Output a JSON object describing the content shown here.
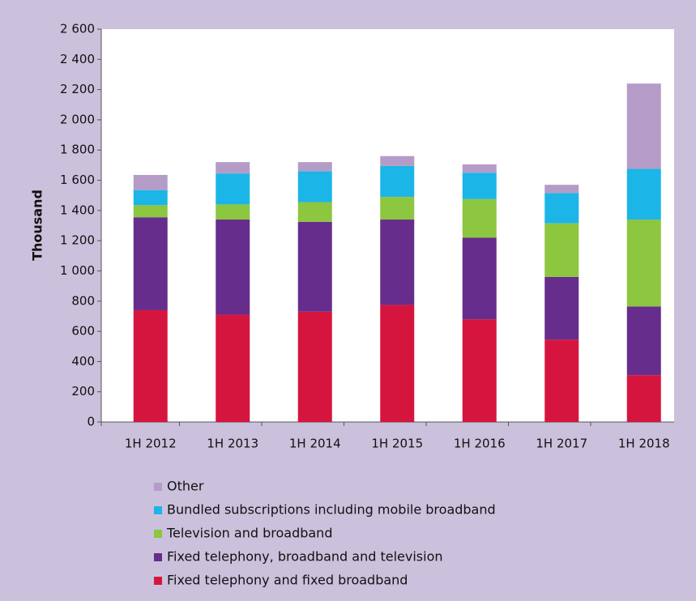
{
  "chart_data": {
    "type": "stacked_bar",
    "y_label": "Thousand",
    "categories": [
      "1H 2012",
      "1H 2013",
      "1H 2014",
      "1H 2015",
      "1H 2016",
      "1H 2017",
      "1H 2018"
    ],
    "series": [
      {
        "name": "Fixed telephony and fixed broadband",
        "color": "#d6153e",
        "values": [
          740,
          710,
          730,
          775,
          680,
          545,
          310
        ]
      },
      {
        "name": "Fixed telephony, broadband and television",
        "color": "#662d8c",
        "values": [
          615,
          630,
          595,
          565,
          540,
          415,
          455
        ]
      },
      {
        "name": "Television and broadband",
        "color": "#8dc63f",
        "values": [
          80,
          100,
          130,
          150,
          255,
          355,
          575
        ]
      },
      {
        "name": "Bundled subscriptions including mobile broadband",
        "color": "#1cb5e8",
        "values": [
          100,
          205,
          205,
          205,
          175,
          200,
          335
        ]
      },
      {
        "name": "Other",
        "color": "#b59cc8",
        "values": [
          100,
          75,
          60,
          65,
          55,
          55,
          565
        ]
      }
    ],
    "ylim": [
      0,
      2600
    ],
    "yticks": [
      0,
      200,
      400,
      600,
      800,
      {
        "value": 1000,
        "label": "1 000"
      },
      {
        "value": 1200,
        "label": "1 200"
      },
      {
        "value": 1400,
        "label": "1 400"
      },
      {
        "value": 1600,
        "label": "1 600"
      },
      {
        "value": 1800,
        "label": "1 800"
      },
      {
        "value": 2000,
        "label": "2 000"
      },
      {
        "value": 2200,
        "label": "2 200"
      },
      {
        "value": 2400,
        "label": "2 400"
      },
      {
        "value": 2600,
        "label": "2 600"
      }
    ],
    "grid": false,
    "legend": "bottom"
  }
}
